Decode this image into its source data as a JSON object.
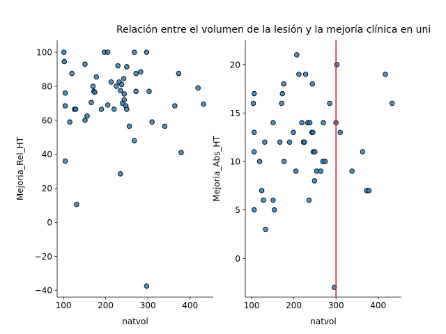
{
  "figure": {
    "title": "Relación entre el volumen de la lesión y la mejoría clínica en uni"
  },
  "chart_data": [
    {
      "type": "scatter",
      "xlabel": "natvol",
      "ylabel": "Mejoria_Rel_HT",
      "xlim": [
        85,
        455
      ],
      "ylim": [
        -44,
        107
      ],
      "xticks": [
        100,
        200,
        300,
        400
      ],
      "yticks": [
        -40,
        -20,
        0,
        20,
        40,
        60,
        80,
        100
      ],
      "grid": false,
      "marker_color": "#1f77b4",
      "points": [
        [
          101,
          100
        ],
        [
          102,
          94.5
        ],
        [
          104,
          76
        ],
        [
          104,
          68.5
        ],
        [
          104,
          36
        ],
        [
          115,
          59
        ],
        [
          120,
          87.5
        ],
        [
          126,
          66.5
        ],
        [
          129,
          66.5
        ],
        [
          131,
          10.5
        ],
        [
          151,
          93
        ],
        [
          151,
          60
        ],
        [
          156,
          62.5
        ],
        [
          166,
          70.5
        ],
        [
          170,
          80
        ],
        [
          172,
          77
        ],
        [
          174,
          76.5
        ],
        [
          178,
          85.5
        ],
        [
          190,
          66.5
        ],
        [
          197,
          100
        ],
        [
          205,
          100
        ],
        [
          205,
          69
        ],
        [
          213,
          82.5
        ],
        [
          220,
          66.5
        ],
        [
          225,
          80
        ],
        [
          229,
          92
        ],
        [
          232,
          82.5
        ],
        [
          235,
          77.5
        ],
        [
          235,
          28.5
        ],
        [
          238,
          81
        ],
        [
          240,
          70
        ],
        [
          243,
          84.5
        ],
        [
          244,
          75.5
        ],
        [
          244,
          72
        ],
        [
          248,
          68.5
        ],
        [
          250,
          66.5
        ],
        [
          250,
          91.5
        ],
        [
          256,
          56.5
        ],
        [
          268,
          100
        ],
        [
          268,
          48
        ],
        [
          272,
          87.5
        ],
        [
          272,
          77
        ],
        [
          283,
          88.5
        ],
        [
          297,
          100
        ],
        [
          297,
          -37.5
        ],
        [
          303,
          77
        ],
        [
          310,
          59
        ],
        [
          340,
          56.5
        ],
        [
          364,
          68.5
        ],
        [
          373,
          87.5
        ],
        [
          379,
          41
        ],
        [
          419,
          79
        ],
        [
          432,
          69.5
        ]
      ]
    },
    {
      "type": "scatter",
      "xlabel": "natvol",
      "ylabel": "Mejoria_Abs_HT",
      "xlim": [
        85,
        455
      ],
      "ylim": [
        -4,
        22.5
      ],
      "xticks": [
        100,
        200,
        300,
        400
      ],
      "yticks": [
        0,
        5,
        10,
        15,
        20
      ],
      "grid": false,
      "marker_color": "#1f77b4",
      "vline": {
        "x": 300,
        "color": "#d62728"
      },
      "points": [
        [
          104,
          16
        ],
        [
          106,
          17
        ],
        [
          106,
          13
        ],
        [
          106,
          11
        ],
        [
          106,
          5
        ],
        [
          119,
          10
        ],
        [
          124,
          7
        ],
        [
          128,
          6
        ],
        [
          131,
          12
        ],
        [
          133,
          3
        ],
        [
          151,
          14
        ],
        [
          151,
          6
        ],
        [
          154,
          5
        ],
        [
          167,
          12
        ],
        [
          171,
          16
        ],
        [
          173,
          17
        ],
        [
          176,
          18
        ],
        [
          177,
          10
        ],
        [
          190,
          12
        ],
        [
          199,
          13
        ],
        [
          205,
          9
        ],
        [
          207,
          21
        ],
        [
          212,
          19
        ],
        [
          219,
          14
        ],
        [
          223,
          12
        ],
        [
          225,
          12
        ],
        [
          228,
          19
        ],
        [
          233,
          14
        ],
        [
          236,
          6
        ],
        [
          238,
          14
        ],
        [
          243,
          13
        ],
        [
          244,
          18
        ],
        [
          245,
          13
        ],
        [
          246,
          11
        ],
        [
          249,
          8
        ],
        [
          250,
          11
        ],
        [
          254,
          9
        ],
        [
          264,
          9
        ],
        [
          269,
          10
        ],
        [
          270,
          14
        ],
        [
          274,
          10
        ],
        [
          285,
          16
        ],
        [
          296,
          -3
        ],
        [
          300,
          14
        ],
        [
          302,
          20
        ],
        [
          310,
          13
        ],
        [
          338,
          9
        ],
        [
          363,
          11
        ],
        [
          373,
          7
        ],
        [
          378,
          7
        ],
        [
          417,
          19
        ],
        [
          433,
          16
        ]
      ]
    }
  ]
}
